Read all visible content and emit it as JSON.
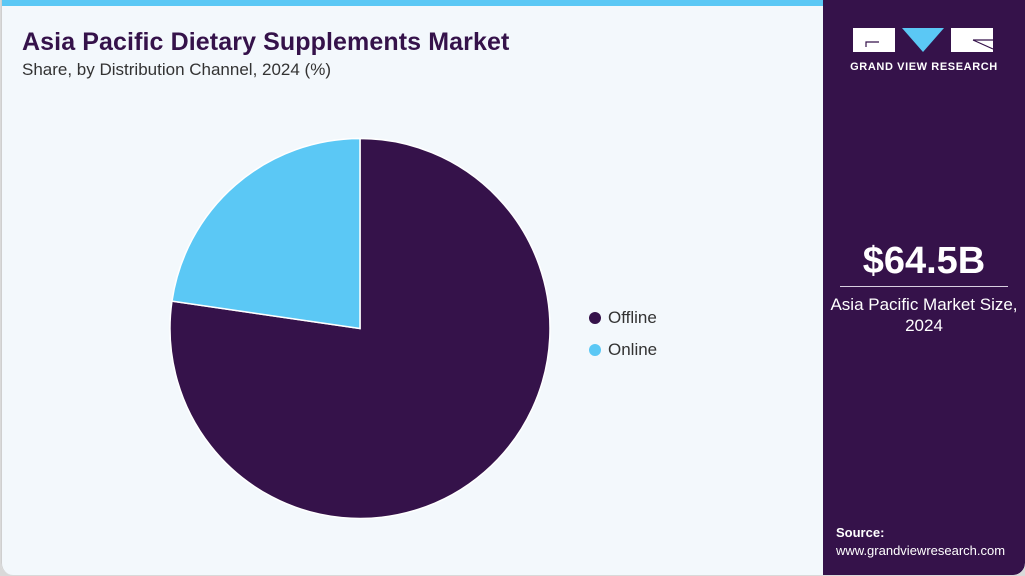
{
  "header": {
    "title": "Asia Pacific Dietary Supplements Market",
    "subtitle": "Share, by Distribution Channel, 2024 (%)"
  },
  "legend": {
    "items": [
      {
        "label": "Offline",
        "color": "#35124a"
      },
      {
        "label": "Online",
        "color": "#5bc8f5"
      }
    ]
  },
  "sidebar": {
    "brand": "GRAND VIEW RESEARCH",
    "market_value": "$64.5B",
    "market_label_line1": "Asia Pacific Market Size,",
    "market_label_line2": "2024",
    "source_label": "Source:",
    "source_url": "www.grandviewresearch.com"
  },
  "colors": {
    "accent": "#5bc8f5",
    "brand": "#35124a",
    "background": "#f3f8fc"
  },
  "chart_data": {
    "type": "pie",
    "title": "Asia Pacific Dietary Supplements Market",
    "subtitle": "Share, by Distribution Channel, 2024 (%)",
    "categories": [
      "Offline",
      "Online"
    ],
    "values": [
      77.3,
      22.7
    ],
    "colors": [
      "#35124a",
      "#5bc8f5"
    ],
    "start_angle": "12 o'clock, Offline clockwise",
    "legend_position": "right"
  }
}
